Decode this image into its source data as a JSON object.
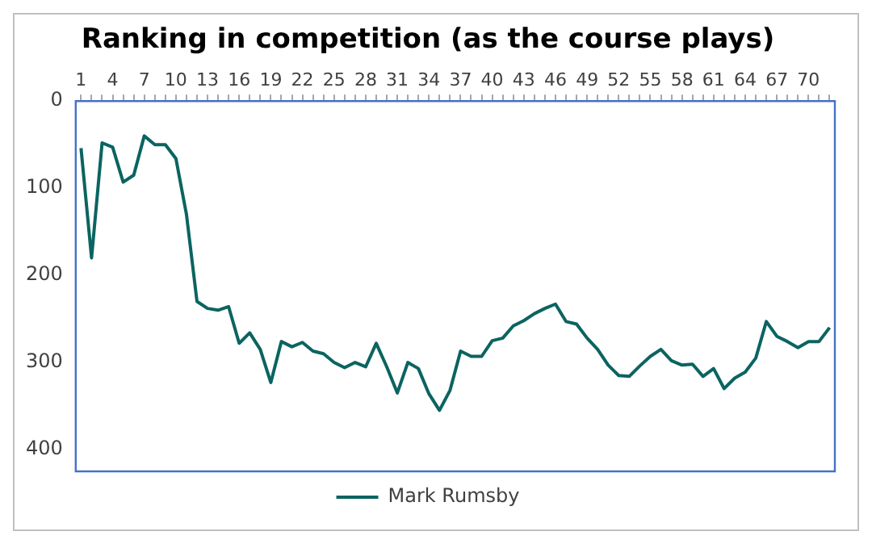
{
  "chart_data": {
    "type": "line",
    "title": "Ranking in competition (as the course plays)",
    "categories": [
      "1",
      null,
      null,
      "4",
      null,
      null,
      "7",
      null,
      null,
      "10",
      null,
      null,
      "13",
      null,
      null,
      "16",
      null,
      null,
      "19",
      null,
      null,
      "22",
      null,
      null,
      "25",
      null,
      null,
      "28",
      null,
      null,
      "31",
      null,
      null,
      "34",
      null,
      null,
      "37",
      null,
      null,
      "40",
      null,
      null,
      "43",
      null,
      null,
      "46",
      null,
      null,
      "49",
      null,
      null,
      "52",
      null,
      null,
      "55",
      null,
      null,
      "58",
      null,
      null,
      "61",
      null,
      null,
      "64",
      null,
      null,
      "67",
      null,
      null,
      "70",
      null,
      null
    ],
    "series": [
      {
        "name": "Mark Rumsby",
        "color": "#0b6461",
        "values": [
          54,
          180,
          48,
          53,
          93,
          85,
          40,
          50,
          50,
          66,
          130,
          230,
          238,
          240,
          236,
          278,
          266,
          285,
          323,
          276,
          282,
          277,
          287,
          290,
          300,
          306,
          300,
          305,
          278,
          305,
          335,
          300,
          307,
          336,
          355,
          332,
          287,
          293,
          293,
          275,
          272,
          258,
          252,
          244,
          238,
          233,
          253,
          256,
          272,
          285,
          303,
          315,
          316,
          304,
          293,
          285,
          298,
          303,
          302,
          316,
          307,
          330,
          318,
          311,
          295,
          253,
          270,
          276,
          283,
          276,
          276,
          260
        ]
      }
    ],
    "ylim": [
      425,
      0
    ],
    "yticks": [
      0,
      100,
      200,
      300,
      400
    ],
    "grid": false,
    "legend": "bottom",
    "marker": "none",
    "line_style": "solid"
  }
}
